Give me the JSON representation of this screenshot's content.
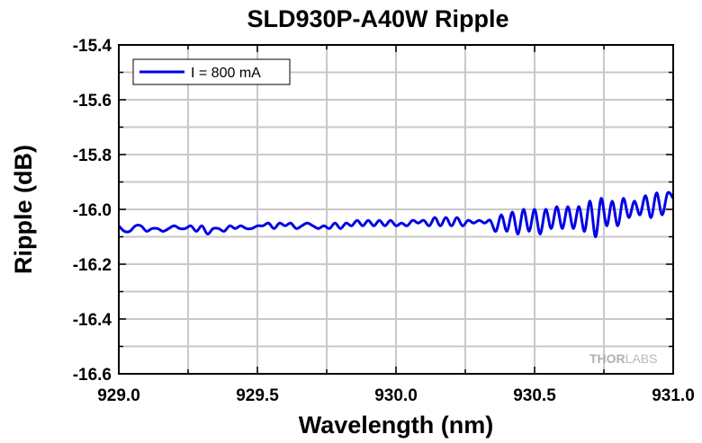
{
  "chart_data": {
    "type": "line",
    "title": "SLD930P-A40W Ripple",
    "xlabel": "Wavelength (nm)",
    "ylabel": "Ripple (dB)",
    "xlim": [
      929.0,
      931.0
    ],
    "ylim": [
      -16.6,
      -15.4
    ],
    "x_ticks": [
      "929.0",
      "929.5",
      "930.0",
      "930.5",
      "931.0"
    ],
    "y_ticks": [
      "-15.4",
      "-15.6",
      "-15.8",
      "-16.0",
      "-16.2",
      "-16.4",
      "-16.6"
    ],
    "grid": true,
    "legend_position": "top-left",
    "series_color": "#0000e6",
    "series": [
      {
        "name": "I = 800 mA",
        "x": [
          929.0,
          929.02,
          929.04,
          929.06,
          929.08,
          929.1,
          929.12,
          929.14,
          929.16,
          929.18,
          929.2,
          929.22,
          929.24,
          929.26,
          929.28,
          929.3,
          929.32,
          929.34,
          929.36,
          929.38,
          929.4,
          929.42,
          929.44,
          929.46,
          929.48,
          929.5,
          929.52,
          929.54,
          929.56,
          929.58,
          929.6,
          929.62,
          929.64,
          929.66,
          929.68,
          929.7,
          929.72,
          929.74,
          929.76,
          929.78,
          929.8,
          929.82,
          929.84,
          929.86,
          929.88,
          929.9,
          929.92,
          929.94,
          929.96,
          929.98,
          930.0,
          930.02,
          930.04,
          930.06,
          930.08,
          930.1,
          930.12,
          930.14,
          930.16,
          930.18,
          930.2,
          930.22,
          930.24,
          930.26,
          930.28,
          930.3,
          930.32,
          930.34,
          930.36,
          930.38,
          930.4,
          930.42,
          930.44,
          930.46,
          930.48,
          930.5,
          930.52,
          930.54,
          930.56,
          930.58,
          930.6,
          930.62,
          930.64,
          930.66,
          930.68,
          930.7,
          930.72,
          930.74,
          930.76,
          930.78,
          930.8,
          930.82,
          930.84,
          930.86,
          930.88,
          930.9,
          930.92,
          930.94,
          930.96,
          930.98,
          931.0
        ],
        "y": [
          -16.06,
          -16.08,
          -16.08,
          -16.06,
          -16.06,
          -16.08,
          -16.07,
          -16.07,
          -16.08,
          -16.07,
          -16.06,
          -16.07,
          -16.07,
          -16.06,
          -16.08,
          -16.06,
          -16.09,
          -16.07,
          -16.07,
          -16.08,
          -16.06,
          -16.07,
          -16.06,
          -16.07,
          -16.07,
          -16.06,
          -16.06,
          -16.05,
          -16.07,
          -16.05,
          -16.06,
          -16.05,
          -16.07,
          -16.06,
          -16.05,
          -16.06,
          -16.07,
          -16.06,
          -16.07,
          -16.05,
          -16.07,
          -16.05,
          -16.06,
          -16.04,
          -16.06,
          -16.04,
          -16.06,
          -16.04,
          -16.06,
          -16.04,
          -16.06,
          -16.05,
          -16.06,
          -16.04,
          -16.05,
          -16.04,
          -16.06,
          -16.03,
          -16.06,
          -16.03,
          -16.06,
          -16.03,
          -16.06,
          -16.04,
          -16.05,
          -16.04,
          -16.05,
          -16.04,
          -16.08,
          -16.02,
          -16.08,
          -16.01,
          -16.09,
          -16.0,
          -16.08,
          -16.0,
          -16.09,
          -16.0,
          -16.07,
          -15.99,
          -16.07,
          -15.99,
          -16.07,
          -15.99,
          -16.08,
          -15.97,
          -16.1,
          -15.96,
          -16.06,
          -15.97,
          -16.06,
          -15.96,
          -16.03,
          -15.97,
          -16.02,
          -15.95,
          -16.03,
          -15.94,
          -16.02,
          -15.94,
          -15.96
        ]
      }
    ]
  },
  "watermark": {
    "bold": "THOR",
    "thin": "LABS"
  }
}
